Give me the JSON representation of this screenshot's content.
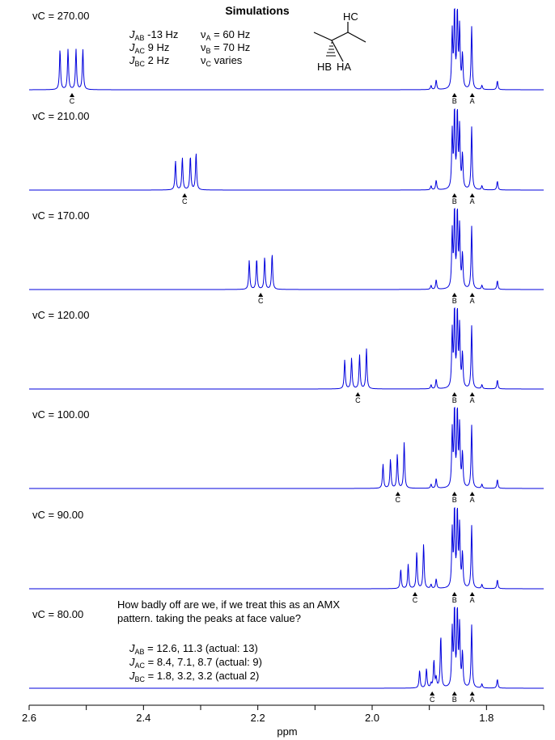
{
  "chart_data": {
    "type": "line",
    "title": "Simulations",
    "xlabel": "ppm",
    "xlim": [
      2.6,
      1.7
    ],
    "x_reversed": true,
    "x_ticks": [
      "2.6",
      "2.4",
      "2.2",
      "2.0",
      "1.8"
    ],
    "params": {
      "jab": "-13 Hz",
      "jac": "9 Hz",
      "jbc": "2 Hz",
      "va": "60 Hz",
      "vb": "70 Hz",
      "vc": "varies"
    },
    "molecule_labels": {
      "hc": "HC",
      "hb": "HB",
      "ha": "HA"
    },
    "marker_labels": {
      "a": "A",
      "b": "B",
      "c": "C"
    },
    "shift_a_ppm": 1.825,
    "shift_b_ppm": 1.856,
    "series": [
      {
        "label": "vC = 270.00",
        "vc": 270,
        "c_center_ppm": 2.525,
        "c_peaks": [
          2.546,
          2.532,
          2.518,
          2.506
        ],
        "c_heights": [
          0.5,
          0.5,
          0.5,
          0.5
        ]
      },
      {
        "label": "vC = 210.00",
        "vc": 210,
        "c_center_ppm": 2.328,
        "c_peaks": [
          2.344,
          2.332,
          2.318,
          2.308
        ],
        "c_heights": [
          0.36,
          0.4,
          0.42,
          0.46
        ]
      },
      {
        "label": "vC = 170.00",
        "vc": 170,
        "c_center_ppm": 2.195,
        "c_peaks": [
          2.215,
          2.202,
          2.188,
          2.175
        ],
        "c_heights": [
          0.36,
          0.38,
          0.4,
          0.44
        ]
      },
      {
        "label": "vC = 120.00",
        "vc": 120,
        "c_center_ppm": 2.025,
        "c_peaks": [
          2.048,
          2.036,
          2.022,
          2.01
        ],
        "c_heights": [
          0.36,
          0.38,
          0.42,
          0.5
        ]
      },
      {
        "label": "vC = 100.00",
        "vc": 100,
        "c_center_ppm": 1.955,
        "c_peaks": [
          1.981,
          1.968,
          1.956,
          1.944
        ],
        "c_heights": [
          0.3,
          0.36,
          0.42,
          0.57
        ]
      },
      {
        "label": "vC = 90.00",
        "vc": 90,
        "c_center_ppm": 1.925,
        "c_peaks": [
          1.95,
          1.937,
          1.922,
          1.91
        ],
        "c_heights": [
          0.24,
          0.3,
          0.45,
          0.55
        ]
      },
      {
        "label": "vC = 80.00",
        "vc": 80,
        "c_center_ppm": 1.895,
        "c_peaks": [
          1.917,
          1.905,
          1.892,
          1.88
        ],
        "c_heights": [
          0.22,
          0.24,
          0.34,
          0.65
        ]
      }
    ],
    "annotation": {
      "question_1": "How badly off are we, if we treat this as an AMX",
      "question_2": "pattern. taking the peaks at face value?",
      "jab_result": "= 12.6, 11.3 (actual: 13)",
      "jac_result": "= 8.4, 7.1, 8.7 (actual: 9)",
      "jbc_result": "= 1.8, 3.2, 3.2 (actual 2)"
    }
  }
}
